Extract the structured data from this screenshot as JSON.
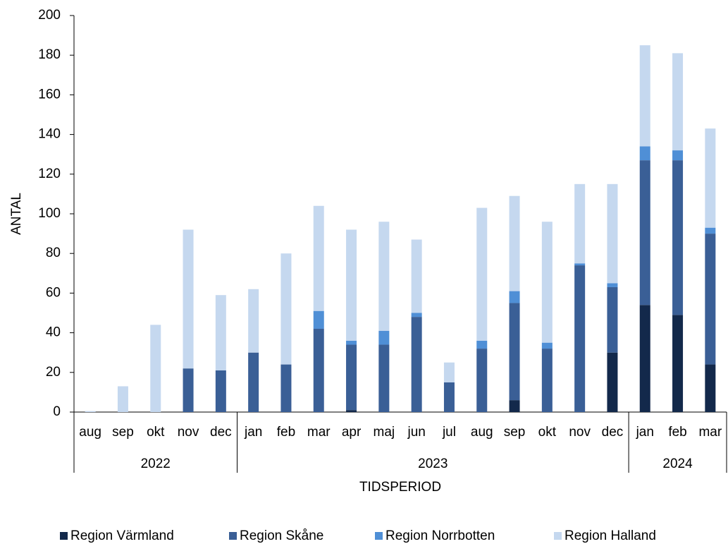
{
  "chart_data": {
    "type": "stacked_bar",
    "y_label": "ANTAL",
    "x_label": "TIDSPERIOD",
    "groups": [
      {
        "name": "2022",
        "categories": [
          "aug",
          "sep",
          "okt",
          "nov",
          "dec"
        ]
      },
      {
        "name": "2023",
        "categories": [
          "jan",
          "feb",
          "mar",
          "apr",
          "maj",
          "jun",
          "jul",
          "aug",
          "sep",
          "okt",
          "nov",
          "dec"
        ]
      },
      {
        "name": "2024",
        "categories": [
          "jan",
          "feb",
          "mar"
        ]
      }
    ],
    "series": [
      {
        "name": "Region Värmland",
        "color": "#13294b",
        "values": [
          0,
          0,
          0,
          0,
          0,
          0,
          0,
          0,
          1,
          0,
          0,
          0,
          0,
          6,
          0,
          0,
          30,
          54,
          49,
          24
        ]
      },
      {
        "name": "Region Skåne",
        "color": "#3a5f96",
        "values": [
          0,
          0,
          0,
          22,
          21,
          30,
          24,
          42,
          33,
          34,
          48,
          15,
          32,
          49,
          32,
          74,
          33,
          73,
          78,
          66
        ]
      },
      {
        "name": "Region Norrbotten",
        "color": "#4f8fd6",
        "values": [
          0,
          0,
          0,
          0,
          0,
          0,
          0,
          9,
          2,
          7,
          2,
          0,
          4,
          6,
          3,
          1,
          2,
          7,
          5,
          3
        ]
      },
      {
        "name": "Region Halland",
        "color": "#c5d8ef",
        "values": [
          0.5,
          13,
          44,
          70,
          38,
          32,
          56,
          53,
          56,
          55,
          37,
          10,
          67,
          48,
          61,
          40,
          50,
          51,
          49,
          50
        ]
      }
    ],
    "ylim": [
      0,
      200
    ],
    "yticks": [
      0,
      20,
      40,
      60,
      80,
      100,
      120,
      140,
      160,
      180,
      200
    ],
    "grid": false
  }
}
